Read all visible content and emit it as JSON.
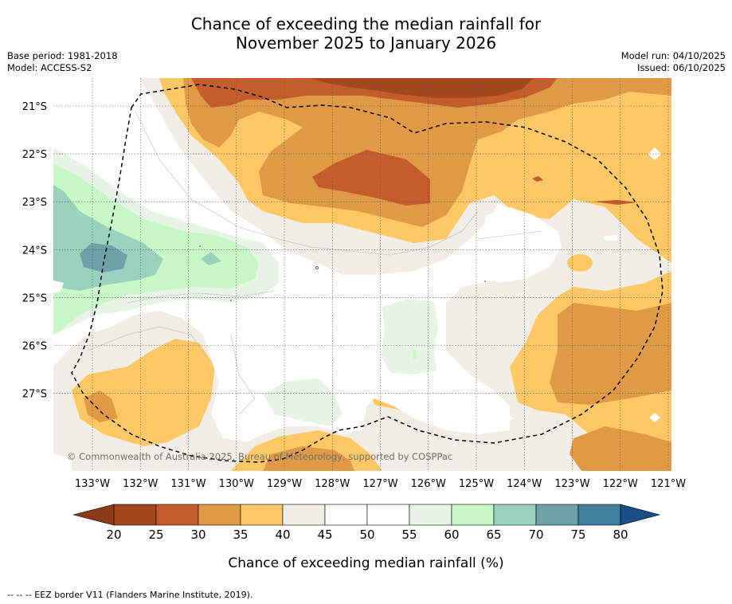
{
  "title_line1": "Chance of exceeding the median rainfall for",
  "title_line2": "November 2025 to January 2026",
  "meta_left": {
    "base_period": "Base period: 1981-2018",
    "model": "Model: ACCESS-S2"
  },
  "meta_right": {
    "model_run": "Model run: 04/10/2025",
    "issued": "Issued: 06/10/2025"
  },
  "copyright": "© Commonwealth of Australia 2025, Bureau of Meteorology, supported by COSPPac",
  "lat_labels": [
    "21°S",
    "22°S",
    "23°S",
    "24°S",
    "25°S",
    "26°S",
    "27°S"
  ],
  "lon_labels": [
    "133°W",
    "132°W",
    "131°W",
    "130°W",
    "129°W",
    "128°W",
    "127°W",
    "126°W",
    "125°W",
    "124°W",
    "123°W",
    "122°W",
    "121°W"
  ],
  "colorbar": {
    "ticks": [
      "20",
      "25",
      "30",
      "35",
      "40",
      "45",
      "50",
      "55",
      "60",
      "65",
      "70",
      "75",
      "80"
    ],
    "label": "Chance of exceeding median rainfall (%)",
    "colors": [
      "#a3471f",
      "#c45d2b",
      "#e09a45",
      "#fdc865",
      "#f1ede7",
      "#ffffff",
      "#ffffff",
      "#e8f4e6",
      "#c9f8c8",
      "#9bd2bd",
      "#6da3a8",
      "#417d9c"
    ],
    "extend_low": "#8c3a19",
    "extend_high": "#184e84"
  },
  "footnote": "-- -- -- EEZ border V11 (Flanders Marine Institute, 2019)."
}
